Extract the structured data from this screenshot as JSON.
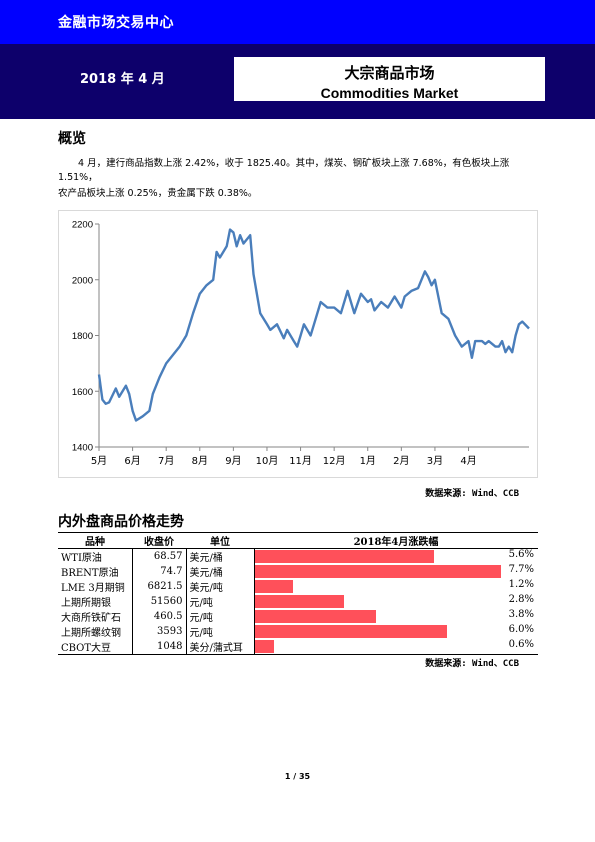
{
  "header": {
    "brand": "金融市场交易中心",
    "date": "2018 年 4 月",
    "title_cn": "大宗商品市场",
    "title_en": "Commodities Market",
    "colors": {
      "topbar": "#0000ff",
      "band": "#0d006b",
      "line": "#4a7ebb",
      "bar": "#ff505a"
    }
  },
  "overview": {
    "heading": "概览",
    "line1": "4 月，建行商品指数上涨 2.42%，收于 1825.40。其中，煤炭、钢矿板块上涨 7.68%，有色板块上涨 1.51%，",
    "line2": "农产品板块上涨 0.25%，贵金属下跌 0.38%。"
  },
  "chart_data": {
    "type": "line",
    "ylim": [
      1400,
      2200
    ],
    "yticks": [
      "1400",
      "1600",
      "1800",
      "2000",
      "2200"
    ],
    "xtick_labels": [
      "5月",
      "6月",
      "7月",
      "8月",
      "9月",
      "10月",
      "11月",
      "12月",
      "1月",
      "2月",
      "3月",
      "4月"
    ],
    "xlim": [
      0,
      12.8
    ],
    "series": [
      {
        "x": [
          0,
          0.1,
          0.2,
          0.3,
          0.5,
          0.6,
          0.8,
          0.9,
          1.0,
          1.1,
          1.3,
          1.5,
          1.6,
          1.8,
          2.0,
          2.2,
          2.4,
          2.6,
          2.8,
          3.0,
          3.2,
          3.4,
          3.5,
          3.6,
          3.8,
          3.9,
          4.0,
          4.1,
          4.2,
          4.3,
          4.5,
          4.6,
          4.8,
          5.0,
          5.1,
          5.3,
          5.5,
          5.6,
          5.8,
          5.9,
          6.0,
          6.1,
          6.3,
          6.4,
          6.6,
          6.8,
          7.0,
          7.2,
          7.4,
          7.6,
          7.8,
          8.0,
          8.1,
          8.2,
          8.4,
          8.6,
          8.8,
          9.0,
          9.1,
          9.3,
          9.5,
          9.7,
          9.8,
          9.9,
          10.0,
          10.2,
          10.4,
          10.6,
          10.8,
          11.0,
          11.1,
          11.2,
          11.4,
          11.5,
          11.6,
          11.8,
          11.9,
          12.0,
          12.1,
          12.2,
          12.3,
          12.4,
          12.5,
          12.6,
          12.8
        ],
        "y": [
          1660,
          1570,
          1555,
          1560,
          1610,
          1580,
          1620,
          1590,
          1530,
          1495,
          1510,
          1530,
          1590,
          1650,
          1700,
          1730,
          1760,
          1800,
          1880,
          1950,
          1980,
          2000,
          2100,
          2080,
          2120,
          2180,
          2170,
          2120,
          2160,
          2130,
          2160,
          2020,
          1880,
          1840,
          1820,
          1840,
          1790,
          1820,
          1780,
          1760,
          1800,
          1840,
          1800,
          1840,
          1920,
          1900,
          1900,
          1880,
          1960,
          1880,
          1950,
          1920,
          1930,
          1890,
          1920,
          1900,
          1940,
          1900,
          1940,
          1960,
          1970,
          2030,
          2010,
          1980,
          2000,
          1880,
          1860,
          1800,
          1760,
          1780,
          1720,
          1780,
          1780,
          1770,
          1780,
          1760,
          1760,
          1780,
          1740,
          1760,
          1740,
          1800,
          1840,
          1850,
          1825
        ]
      }
    ]
  },
  "chart_source": "数据来源: Wind、CCB",
  "table_section": {
    "heading": "内外盘商品价格走势",
    "headers": [
      "品种",
      "收盘价",
      "单位",
      "2018年4月涨跌幅"
    ],
    "max_abs_change": 7.7,
    "rows": [
      {
        "name": "WTI原油",
        "close": "68.57",
        "unit": "美元/桶",
        "change_label": "5.6%",
        "change": 5.6
      },
      {
        "name": "BRENT原油",
        "close": "74.7",
        "unit": "美元/桶",
        "change_label": "7.7%",
        "change": 7.7
      },
      {
        "name": "LME 3月期铜",
        "close": "6821.5",
        "unit": "美元/吨",
        "change_label": "1.2%",
        "change": 1.2
      },
      {
        "name": "上期所期银",
        "close": "51560",
        "unit": "元/吨",
        "change_label": "2.8%",
        "change": 2.8
      },
      {
        "name": "大商所铁矿石",
        "close": "460.5",
        "unit": "元/吨",
        "change_label": "3.8%",
        "change": 3.8
      },
      {
        "name": "上期所螺纹钢",
        "close": "3593",
        "unit": "元/吨",
        "change_label": "6.0%",
        "change": 6.0
      },
      {
        "name": "CBOT大豆",
        "close": "1048",
        "unit": "美分/蒲式耳",
        "change_label": "0.6%",
        "change": 0.6
      }
    ],
    "source": "数据来源: Wind、CCB"
  },
  "footer": {
    "page": "1 / 35"
  }
}
